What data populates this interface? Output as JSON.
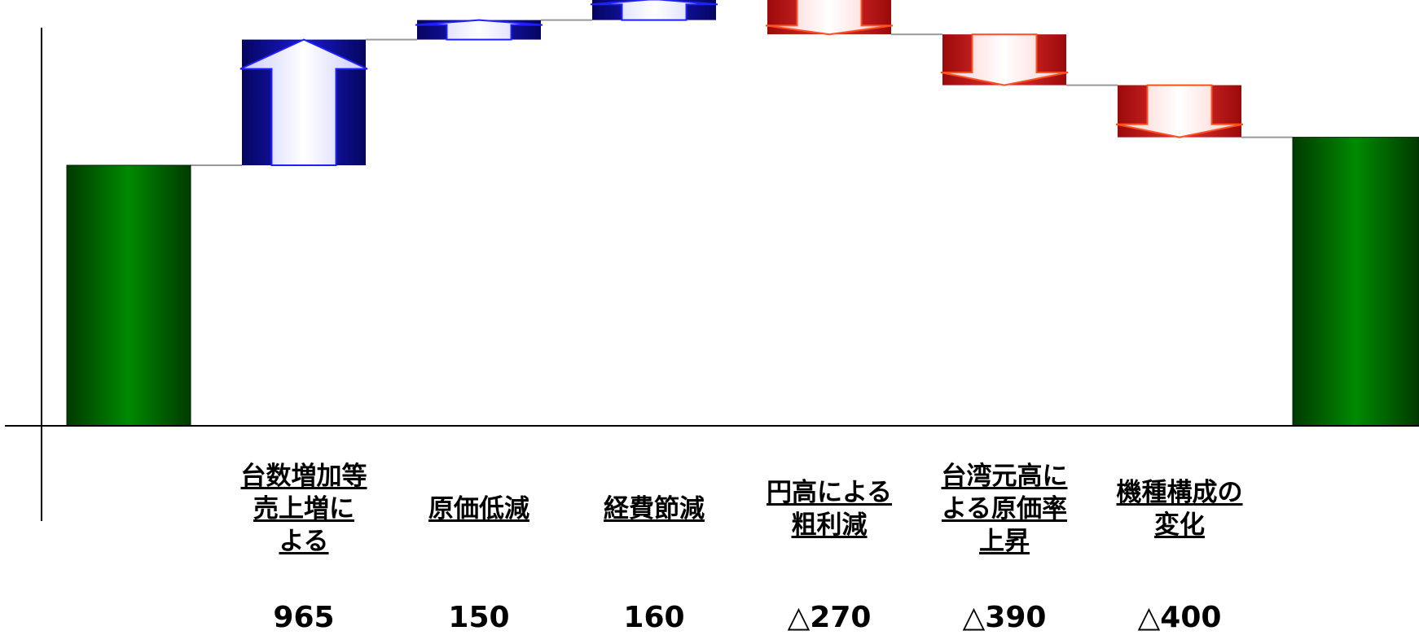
{
  "chart_data": {
    "type": "waterfall",
    "xlabel": "",
    "ylabel": "",
    "start_value_estimate": 2000,
    "end_value_estimate": 2215,
    "categories": [
      {
        "label_lines": [
          "台数増加等",
          "売上増に",
          "よる"
        ],
        "value": 965,
        "value_text": "965"
      },
      {
        "label_lines": [
          "原価低減"
        ],
        "value": 150,
        "value_text": "150"
      },
      {
        "label_lines": [
          "経費節減"
        ],
        "value": 160,
        "value_text": "160"
      },
      {
        "label_lines": [
          "円高による",
          "粗利減"
        ],
        "value": -270,
        "value_text": "△270"
      },
      {
        "label_lines": [
          "台湾元高に",
          "よる原価率",
          "上昇"
        ],
        "value": -390,
        "value_text": "△390"
      },
      {
        "label_lines": [
          "機種構成の",
          "変化"
        ],
        "value": -400,
        "value_text": "△400"
      }
    ],
    "colors": {
      "total": "#007a00",
      "increase": "#0a0ab4",
      "decrease": "#d21414",
      "connector": "#999999",
      "axis": "#000000"
    }
  }
}
